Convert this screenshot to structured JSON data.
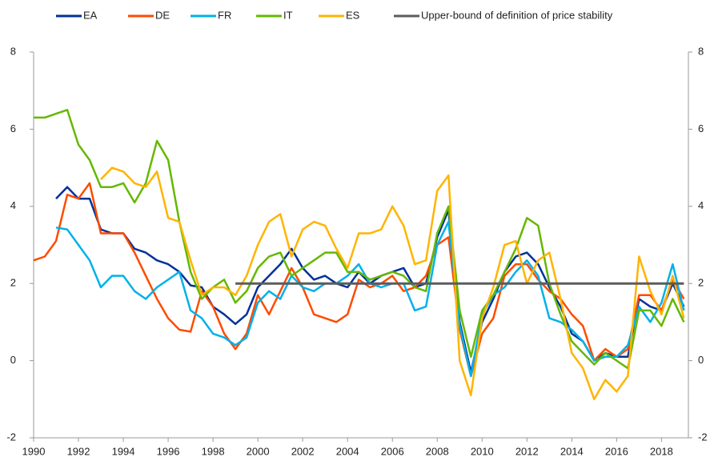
{
  "chart_data": {
    "type": "line",
    "x": [
      1990,
      1990.5,
      1991,
      1991.5,
      1992,
      1992.5,
      1993,
      1993.5,
      1994,
      1994.5,
      1995,
      1995.5,
      1996,
      1996.5,
      1997,
      1997.5,
      1998,
      1998.5,
      1999,
      1999.5,
      2000,
      2000.5,
      2001,
      2001.5,
      2002,
      2002.5,
      2003,
      2003.5,
      2004,
      2004.5,
      2005,
      2005.5,
      2006,
      2006.5,
      2007,
      2007.5,
      2008,
      2008.5,
      2009,
      2009.5,
      2010,
      2010.5,
      2011,
      2011.5,
      2012,
      2012.5,
      2013,
      2013.5,
      2014,
      2014.5,
      2015,
      2015.5,
      2016,
      2016.5,
      2017,
      2017.5,
      2018,
      2018.5,
      2019
    ],
    "series": [
      {
        "name": "EA",
        "color": "#003299",
        "values": [
          null,
          null,
          4.2,
          4.5,
          4.2,
          4.2,
          3.4,
          3.3,
          3.3,
          2.9,
          2.8,
          2.6,
          2.5,
          2.3,
          1.95,
          1.9,
          1.4,
          1.2,
          0.95,
          1.2,
          1.9,
          2.2,
          2.5,
          2.9,
          2.4,
          2.1,
          2.2,
          2.0,
          1.9,
          2.3,
          2.0,
          2.2,
          2.3,
          2.4,
          1.9,
          2.0,
          3.2,
          3.9,
          1.0,
          -0.3,
          1.0,
          1.6,
          2.3,
          2.7,
          2.8,
          2.5,
          1.9,
          1.4,
          0.7,
          0.5,
          0.0,
          0.2,
          0.1,
          0.1,
          1.6,
          1.4,
          1.3,
          2.0,
          1.4
        ]
      },
      {
        "name": "DE",
        "color": "#ff4b00",
        "values": [
          2.6,
          2.7,
          3.1,
          4.3,
          4.2,
          4.6,
          3.3,
          3.3,
          3.3,
          2.8,
          2.2,
          1.6,
          1.1,
          0.8,
          0.75,
          1.8,
          1.4,
          0.7,
          0.3,
          0.7,
          1.7,
          1.2,
          1.8,
          2.4,
          1.9,
          1.2,
          1.1,
          1.0,
          1.2,
          2.1,
          1.9,
          2.0,
          2.2,
          1.8,
          1.9,
          2.2,
          3.0,
          3.2,
          0.8,
          -0.4,
          0.7,
          1.1,
          2.2,
          2.5,
          2.5,
          2.1,
          1.8,
          1.6,
          1.2,
          0.9,
          0.0,
          0.3,
          0.1,
          0.3,
          1.7,
          1.7,
          1.3,
          2.1,
          1.6
        ]
      },
      {
        "name": "FR",
        "color": "#00b1ea",
        "values": [
          null,
          null,
          3.45,
          3.4,
          3.0,
          2.6,
          1.9,
          2.2,
          2.2,
          1.8,
          1.6,
          1.9,
          2.1,
          2.3,
          1.3,
          1.1,
          0.7,
          0.6,
          0.4,
          0.6,
          1.5,
          1.8,
          1.6,
          2.2,
          1.9,
          1.8,
          2.0,
          2.0,
          2.2,
          2.5,
          2.0,
          1.9,
          2.0,
          2.0,
          1.3,
          1.4,
          3.0,
          3.6,
          0.9,
          -0.4,
          1.2,
          1.7,
          1.9,
          2.3,
          2.6,
          2.2,
          1.1,
          1.0,
          0.8,
          0.5,
          0.0,
          0.1,
          0.1,
          0.4,
          1.4,
          1.0,
          1.5,
          2.5,
          1.3
        ]
      },
      {
        "name": "IT",
        "color": "#65b800",
        "values": [
          6.3,
          6.3,
          6.4,
          6.5,
          5.6,
          5.2,
          4.5,
          4.5,
          4.6,
          4.1,
          4.6,
          5.7,
          5.2,
          3.6,
          2.3,
          1.6,
          1.9,
          2.1,
          1.5,
          1.8,
          2.4,
          2.7,
          2.8,
          2.2,
          2.4,
          2.6,
          2.8,
          2.8,
          2.3,
          2.3,
          2.1,
          2.2,
          2.3,
          2.2,
          1.9,
          1.8,
          3.3,
          4.0,
          1.3,
          0.1,
          1.3,
          1.7,
          2.3,
          2.9,
          3.7,
          3.5,
          2.0,
          1.2,
          0.5,
          0.2,
          -0.1,
          0.2,
          0.0,
          -0.2,
          1.3,
          1.3,
          0.9,
          1.6,
          1.0
        ]
      },
      {
        "name": "ES",
        "color": "#ffb400",
        "values": [
          null,
          null,
          null,
          null,
          null,
          null,
          4.7,
          5.0,
          4.9,
          4.6,
          4.5,
          4.9,
          3.7,
          3.6,
          2.6,
          1.7,
          1.9,
          1.9,
          1.7,
          2.2,
          3.0,
          3.6,
          3.8,
          2.7,
          3.4,
          3.6,
          3.5,
          2.9,
          2.4,
          3.3,
          3.3,
          3.4,
          4.0,
          3.5,
          2.5,
          2.6,
          4.4,
          4.8,
          0.0,
          -0.9,
          1.1,
          1.9,
          3.0,
          3.1,
          2.0,
          2.6,
          2.8,
          1.6,
          0.2,
          -0.2,
          -1.0,
          -0.5,
          -0.8,
          -0.4,
          2.7,
          1.8,
          1.2,
          2.2,
          1.1
        ]
      },
      {
        "name": "Upper-bound of definition of price stability",
        "color": "#5c5c5c",
        "values": [
          null,
          null,
          null,
          null,
          null,
          null,
          null,
          null,
          null,
          null,
          null,
          null,
          null,
          null,
          null,
          null,
          null,
          null,
          2,
          2,
          2,
          2,
          2,
          2,
          2,
          2,
          2,
          2,
          2,
          2,
          2,
          2,
          2,
          2,
          2,
          2,
          2,
          2,
          2,
          2,
          2,
          2,
          2,
          2,
          2,
          2,
          2,
          2,
          2,
          2,
          2,
          2,
          2,
          2,
          2,
          2,
          2,
          2,
          2
        ]
      }
    ],
    "xlim": [
      1990,
      2019.2
    ],
    "xticks": [
      1990,
      1992,
      1994,
      1996,
      1998,
      2000,
      2002,
      2004,
      2006,
      2008,
      2010,
      2012,
      2014,
      2016,
      2018
    ],
    "ylim": [
      -2,
      8
    ],
    "yticks": [
      -2,
      0,
      2,
      4,
      6,
      8
    ],
    "y2lim": [
      -2,
      8
    ],
    "y2ticks": [
      -2,
      0,
      2,
      4,
      6,
      8
    ],
    "legend": "top"
  }
}
